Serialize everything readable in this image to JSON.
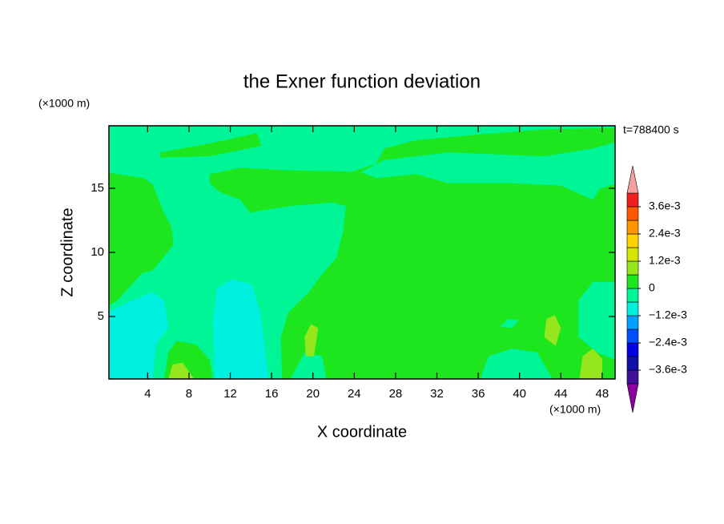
{
  "chart_data": {
    "type": "contour",
    "title": "the Exner function deviation",
    "x_label": "X coordinate",
    "y_label": "Z coordinate",
    "x_unit": "(×1000 m)",
    "y_unit": "(×1000 m)",
    "time_label": "t=788400 s",
    "xlim": [
      0.25,
      49.25
    ],
    "ylim": [
      0.125,
      19.875
    ],
    "xticks": [
      4,
      8,
      12,
      16,
      20,
      24,
      28,
      32,
      36,
      40,
      44,
      48
    ],
    "yticks": [
      5,
      10,
      15
    ],
    "colorbar": {
      "levels": [
        -0.0042,
        -0.0036,
        -0.003,
        -0.0024,
        -0.0018,
        -0.0012,
        -0.0006,
        0,
        0.0006,
        0.0012,
        0.0018,
        0.0024,
        0.003,
        0.0036,
        0.0042
      ],
      "colors": [
        "#40109a",
        "#1010a8",
        "#0000e0",
        "#0050ff",
        "#00a0ff",
        "#00f0e0",
        "#00f596",
        "#1ee61e",
        "#96e61e",
        "#d2e600",
        "#ffd200",
        "#ff9600",
        "#ff5a00",
        "#f01e1e"
      ],
      "under_color": "#8c00a0",
      "over_color": "#f5a0a0",
      "ticks": [
        {
          "value": 0.0036,
          "label": "3.6e-3"
        },
        {
          "value": 0.0024,
          "label": "2.4e-3"
        },
        {
          "value": 0.0012,
          "label": "1.2e-3"
        },
        0,
        {
          "value": -0.0012,
          "label": "−1.2e-3"
        },
        {
          "value": -0.0024,
          "label": "−2.4e-3"
        },
        {
          "value": -0.0036,
          "label": "−3.6e-3"
        }
      ]
    },
    "regions": [
      {
        "level": -0.0006,
        "points": [
          [
            0.25,
            0.125
          ],
          [
            49.25,
            0.125
          ],
          [
            49.25,
            19.875
          ],
          [
            0.25,
            19.875
          ]
        ]
      },
      {
        "level": 0,
        "points": [
          [
            0.28,
            5.9
          ],
          [
            0.28,
            16.2
          ],
          [
            3.6,
            15.8
          ],
          [
            4.5,
            15.3
          ],
          [
            5.5,
            13.2
          ],
          [
            6.3,
            12
          ],
          [
            6.5,
            10.6
          ],
          [
            4.5,
            8.6
          ],
          [
            3.5,
            8.4
          ],
          [
            1,
            6.2
          ]
        ]
      },
      {
        "level": 0,
        "points": [
          [
            5.2,
            17.8
          ],
          [
            10,
            18.5
          ],
          [
            14.6,
            19.3
          ],
          [
            15,
            18.3
          ],
          [
            10,
            17.5
          ],
          [
            5.2,
            17.4
          ]
        ]
      },
      {
        "level": 0,
        "points": [
          [
            10.0,
            16.1
          ],
          [
            13.0,
            16.6
          ],
          [
            17.6,
            16.4
          ],
          [
            23.8,
            16.3
          ],
          [
            26.1,
            16.9
          ],
          [
            26.9,
            18.1
          ],
          [
            30.0,
            18.75
          ],
          [
            36.2,
            19.2
          ],
          [
            42.4,
            19.6
          ],
          [
            49.25,
            19.7
          ],
          [
            49.25,
            0.125
          ],
          [
            21.3,
            0.125
          ],
          [
            20.9,
            1.9
          ],
          [
            19.2,
            2.2
          ],
          [
            17.8,
            0.125
          ],
          [
            17.0,
            0.125
          ],
          [
            16.9,
            3.4
          ],
          [
            17.6,
            5.3
          ],
          [
            19.6,
            6.9
          ],
          [
            20.7,
            8.1
          ],
          [
            22.3,
            9.6
          ],
          [
            22.9,
            11.6
          ],
          [
            23.2,
            13.6
          ],
          [
            21.9,
            13.9
          ],
          [
            17.6,
            13.6
          ],
          [
            15.3,
            13.3
          ],
          [
            13.9,
            13.1
          ],
          [
            13.0,
            14.1
          ],
          [
            11.0,
            14.7
          ],
          [
            10.0,
            15.4
          ]
        ]
      },
      {
        "level": -0.0006,
        "points": [
          [
            24.6,
            16.25
          ],
          [
            26.9,
            17.2
          ],
          [
            33.1,
            17.8
          ],
          [
            42.4,
            17.5
          ],
          [
            47.1,
            18.1
          ],
          [
            49.25,
            18.6
          ],
          [
            49.25,
            15.3
          ],
          [
            47.8,
            15.0
          ],
          [
            47.1,
            14.1
          ],
          [
            44.0,
            15.2
          ],
          [
            39.3,
            15.4
          ],
          [
            33.1,
            15.4
          ],
          [
            30.0,
            16.1
          ],
          [
            26.2,
            15.8
          ]
        ]
      },
      {
        "level": -0.0006,
        "points": [
          [
            36.2,
            0.125
          ],
          [
            37.0,
            1.9
          ],
          [
            39.3,
            2.5
          ],
          [
            41.7,
            2.2
          ],
          [
            43.2,
            0.125
          ]
        ]
      },
      {
        "level": -0.0006,
        "points": [
          [
            49.25,
            7.7
          ],
          [
            47.1,
            7.7
          ],
          [
            45.7,
            6.25
          ],
          [
            45.7,
            3.4
          ],
          [
            47.5,
            2.2
          ],
          [
            49.25,
            1.6
          ]
        ]
      },
      {
        "level": -0.0006,
        "points": [
          [
            38.1,
            4.2
          ],
          [
            38.9,
            4.8
          ],
          [
            39.9,
            4.7
          ],
          [
            39.3,
            4.1
          ]
        ]
      },
      {
        "level": -0.0012,
        "points": [
          [
            0.28,
            5.4
          ],
          [
            2.5,
            6.25
          ],
          [
            4.5,
            6.9
          ],
          [
            5.6,
            6.25
          ],
          [
            6.0,
            4.1
          ],
          [
            4.8,
            2.8
          ],
          [
            4.5,
            0.125
          ],
          [
            0.28,
            0.125
          ]
        ]
      },
      {
        "level": -0.0012,
        "points": [
          [
            10.5,
            0.125
          ],
          [
            10.3,
            4.7
          ],
          [
            10.7,
            7.2
          ],
          [
            12.2,
            7.9
          ],
          [
            14.1,
            7.5
          ],
          [
            14.9,
            5.3
          ],
          [
            15.3,
            2.8
          ],
          [
            15.7,
            0.125
          ]
        ]
      },
      {
        "level": 0,
        "points": [
          [
            5.6,
            0.125
          ],
          [
            6.0,
            2.2
          ],
          [
            6.8,
            3.1
          ],
          [
            8.7,
            2.8
          ],
          [
            10.0,
            1.6
          ],
          [
            10.3,
            0.125
          ]
        ]
      },
      {
        "level": 0.0006,
        "points": [
          [
            19.3,
            1.9
          ],
          [
            19.2,
            3.4
          ],
          [
            19.8,
            4.4
          ],
          [
            20.5,
            4.1
          ],
          [
            20.1,
            1.9
          ]
        ]
      },
      {
        "level": 0.0006,
        "points": [
          [
            42.4,
            3.4
          ],
          [
            42.6,
            4.8
          ],
          [
            43.4,
            5.1
          ],
          [
            44.0,
            4.1
          ],
          [
            43.5,
            2.7
          ]
        ]
      },
      {
        "level": 0.0006,
        "points": [
          [
            45.8,
            0.125
          ],
          [
            46.1,
            1.9
          ],
          [
            47.1,
            2.5
          ],
          [
            48.0,
            1.7
          ],
          [
            48.0,
            0.125
          ]
        ]
      },
      {
        "level": 0.0006,
        "points": [
          [
            6.0,
            0.125
          ],
          [
            6.4,
            1.25
          ],
          [
            7.4,
            1.4
          ],
          [
            8.5,
            0.125
          ]
        ]
      }
    ]
  }
}
